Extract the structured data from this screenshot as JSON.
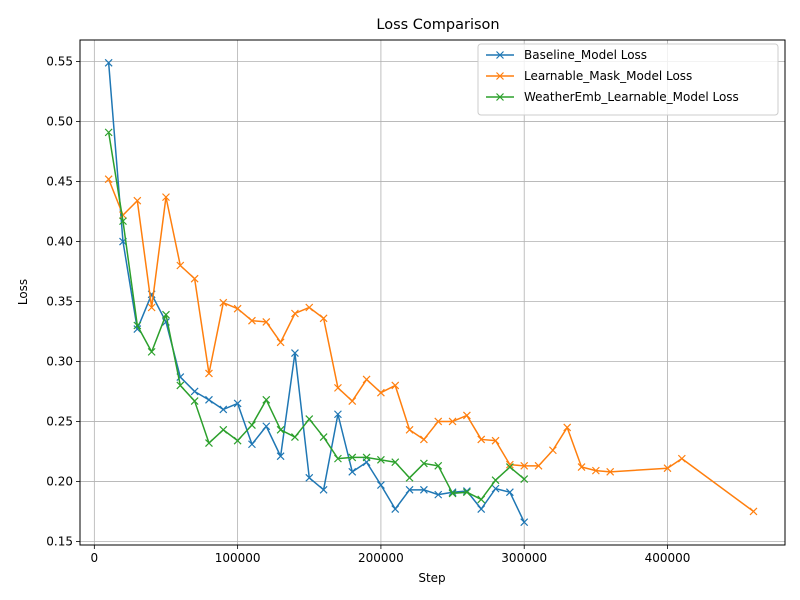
{
  "chart_data": {
    "type": "line",
    "title": "Loss Comparison",
    "xlabel": "Step",
    "ylabel": "Loss",
    "xlim": [
      -10000,
      482000
    ],
    "ylim": [
      0.147,
      0.568
    ],
    "xticks": [
      0,
      100000,
      200000,
      300000,
      400000
    ],
    "xtick_labels": [
      "0",
      "100000",
      "200000",
      "300000",
      "400000"
    ],
    "yticks": [
      0.15,
      0.2,
      0.25,
      0.3,
      0.35,
      0.4,
      0.45,
      0.5,
      0.55
    ],
    "ytick_labels": [
      "0.15",
      "0.20",
      "0.25",
      "0.30",
      "0.35",
      "0.40",
      "0.45",
      "0.50",
      "0.55"
    ],
    "grid": true,
    "legend_position": "top-right",
    "marker": "x",
    "series": [
      {
        "name": "Baseline_Model Loss",
        "color": "#1f77b4",
        "x": [
          10000,
          20000,
          30000,
          40000,
          50000,
          60000,
          70000,
          80000,
          90000,
          100000,
          110000,
          120000,
          130000,
          140000,
          150000,
          160000,
          170000,
          180000,
          190000,
          200000,
          210000,
          220000,
          230000,
          240000,
          250000,
          260000,
          270000,
          280000,
          290000,
          300000
        ],
        "y": [
          0.549,
          0.4,
          0.327,
          0.356,
          0.333,
          0.287,
          0.275,
          0.268,
          0.26,
          0.265,
          0.231,
          0.246,
          0.221,
          0.307,
          0.203,
          0.193,
          0.256,
          0.208,
          0.216,
          0.197,
          0.177,
          0.193,
          0.193,
          0.189,
          0.191,
          0.192,
          0.177,
          0.194,
          0.191,
          0.166
        ]
      },
      {
        "name": "Learnable_Mask_Model Loss",
        "color": "#ff7f0e",
        "x": [
          10000,
          20000,
          30000,
          40000,
          50000,
          60000,
          70000,
          80000,
          90000,
          100000,
          110000,
          120000,
          130000,
          140000,
          150000,
          160000,
          170000,
          180000,
          190000,
          200000,
          210000,
          220000,
          230000,
          240000,
          250000,
          260000,
          270000,
          280000,
          290000,
          300000,
          310000,
          320000,
          330000,
          340000,
          350000,
          360000,
          400000,
          410000,
          460000
        ],
        "y": [
          0.452,
          0.422,
          0.434,
          0.345,
          0.437,
          0.38,
          0.369,
          0.29,
          0.349,
          0.344,
          0.334,
          0.333,
          0.316,
          0.34,
          0.345,
          0.336,
          0.278,
          0.267,
          0.285,
          0.274,
          0.28,
          0.243,
          0.235,
          0.25,
          0.25,
          0.255,
          0.235,
          0.234,
          0.214,
          0.213,
          0.213,
          0.226,
          0.245,
          0.212,
          0.209,
          0.208,
          0.211,
          0.219,
          0.175
        ]
      },
      {
        "name": "WeatherEmb_Learnable_Model Loss",
        "color": "#2ca02c",
        "x": [
          10000,
          20000,
          30000,
          40000,
          50000,
          60000,
          70000,
          80000,
          90000,
          100000,
          110000,
          120000,
          130000,
          140000,
          150000,
          160000,
          170000,
          180000,
          190000,
          200000,
          210000,
          220000,
          230000,
          240000,
          250000,
          260000,
          270000,
          280000,
          290000,
          300000
        ],
        "y": [
          0.491,
          0.417,
          0.33,
          0.308,
          0.339,
          0.28,
          0.267,
          0.232,
          0.243,
          0.234,
          0.247,
          0.268,
          0.243,
          0.237,
          0.252,
          0.237,
          0.219,
          0.22,
          0.22,
          0.218,
          0.216,
          0.203,
          0.215,
          0.213,
          0.19,
          0.191,
          0.185,
          0.201,
          0.212,
          0.202
        ]
      }
    ]
  }
}
